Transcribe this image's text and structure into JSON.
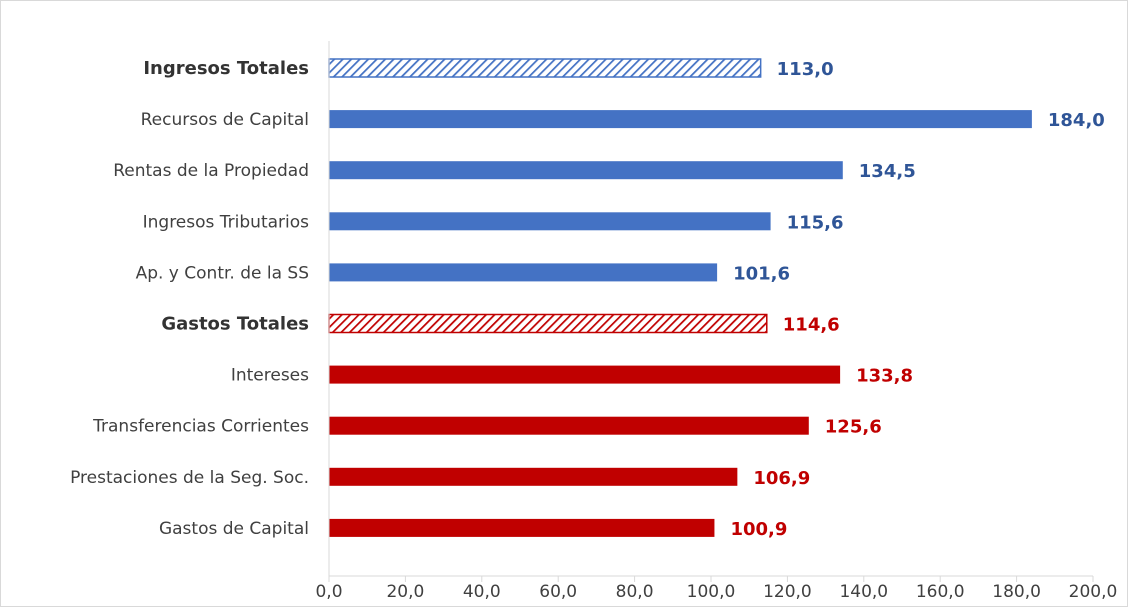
{
  "chart_data": {
    "type": "bar",
    "orientation": "horizontal",
    "xlim": [
      0,
      200
    ],
    "x_ticks": [
      "0,0",
      "20,0",
      "40,0",
      "60,0",
      "80,0",
      "100,0",
      "120,0",
      "140,0",
      "160,0",
      "180,0",
      "200,0"
    ],
    "grid": false,
    "legend": "none",
    "categories": [
      {
        "label": "Ingresos Totales",
        "value": 113.0,
        "value_label": "113,0",
        "group": "ingresos",
        "total": true
      },
      {
        "label": "Recursos de Capital",
        "value": 184.0,
        "value_label": "184,0",
        "group": "ingresos",
        "total": false
      },
      {
        "label": "Rentas de la Propiedad",
        "value": 134.5,
        "value_label": "134,5",
        "group": "ingresos",
        "total": false
      },
      {
        "label": "Ingresos Tributarios",
        "value": 115.6,
        "value_label": "115,6",
        "group": "ingresos",
        "total": false
      },
      {
        "label": "Ap. y Contr. de la SS",
        "value": 101.6,
        "value_label": "101,6",
        "group": "ingresos",
        "total": false
      },
      {
        "label": "Gastos Totales",
        "value": 114.6,
        "value_label": "114,6",
        "group": "gastos",
        "total": true
      },
      {
        "label": "Intereses",
        "value": 133.8,
        "value_label": "133,8",
        "group": "gastos",
        "total": false
      },
      {
        "label": "Transferencias Corrientes",
        "value": 125.6,
        "value_label": "125,6",
        "group": "gastos",
        "total": false
      },
      {
        "label": "Prestaciones de la Seg. Soc.",
        "value": 106.9,
        "value_label": "106,9",
        "group": "gastos",
        "total": false
      },
      {
        "label": "Gastos de Capital",
        "value": 100.9,
        "value_label": "100,9",
        "group": "gastos",
        "total": false
      }
    ]
  },
  "colors": {
    "ingresos": "#4472c4",
    "ingresos_label": "#2f5597",
    "gastos": "#c00000",
    "gastos_label": "#c00000",
    "axis": "#d9d9d9"
  }
}
